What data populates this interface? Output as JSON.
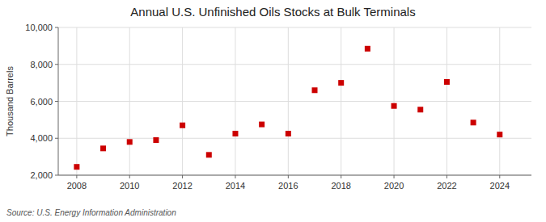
{
  "chart_data": {
    "type": "scatter",
    "title": "Annual U.S. Unfinished Oils Stocks at Bulk Terminals",
    "ylabel": "Thousand Barrels",
    "source": "Source: U.S. Energy Information Administration",
    "x": [
      2008,
      2009,
      2010,
      2011,
      2012,
      2013,
      2014,
      2015,
      2016,
      2017,
      2018,
      2019,
      2020,
      2021,
      2022,
      2023,
      2024
    ],
    "values": [
      2450,
      3450,
      3800,
      3900,
      4700,
      3100,
      4250,
      4750,
      4250,
      6600,
      7000,
      8850,
      5750,
      5550,
      7050,
      4850,
      4200
    ],
    "color": "#cc0000",
    "marker": "square",
    "xlim": [
      2007.3,
      2025.2
    ],
    "ylim": [
      2000,
      10000
    ],
    "xticks": [
      2008,
      2010,
      2012,
      2014,
      2016,
      2018,
      2020,
      2022,
      2024
    ],
    "yticks": [
      {
        "value": 2000,
        "label": "2,000"
      },
      {
        "value": 4000,
        "label": "4,000"
      },
      {
        "value": 6000,
        "label": "6,000"
      },
      {
        "value": 8000,
        "label": "8,000"
      },
      {
        "value": 10000,
        "label": "10,000"
      }
    ],
    "grid": true
  }
}
